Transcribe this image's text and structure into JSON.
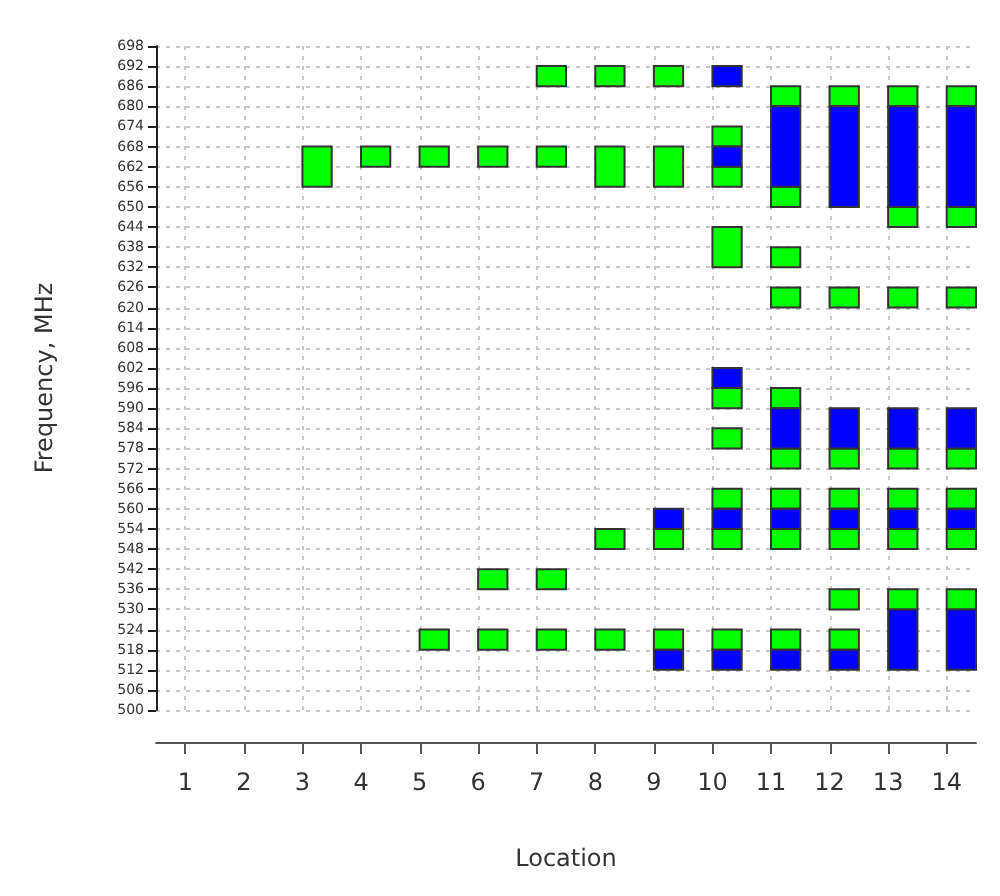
{
  "chart_data": {
    "type": "bar",
    "xlabel": "Location",
    "ylabel": "Frequency, MHz",
    "xlim": [
      0.5,
      14.5
    ],
    "xticks": [
      1,
      2,
      3,
      4,
      5,
      6,
      7,
      8,
      9,
      10,
      11,
      12,
      13,
      14
    ],
    "ylim": [
      500,
      698
    ],
    "yticks": [
      500,
      506,
      512,
      518,
      524,
      530,
      536,
      542,
      548,
      554,
      560,
      566,
      572,
      578,
      584,
      590,
      596,
      602,
      608,
      614,
      620,
      626,
      632,
      638,
      644,
      650,
      656,
      662,
      668,
      674,
      680,
      686,
      692,
      698
    ],
    "grid": true,
    "series": [
      {
        "color": "#00ff00",
        "x": [
          3,
          4,
          5,
          6,
          7,
          8,
          9,
          10,
          11,
          12,
          13,
          14
        ],
        "base": [
          656,
          662,
          518,
          518,
          518,
          518,
          518,
          518,
          518,
          518,
          530,
          530
        ],
        "values": [
          12,
          6,
          6,
          6,
          6,
          6,
          6,
          6,
          6,
          6,
          6,
          6
        ]
      },
      {
        "color": "#00ff00",
        "x": [
          5,
          6,
          7,
          8,
          9,
          10,
          11,
          12,
          13,
          14
        ],
        "base": [
          662,
          536,
          536,
          548,
          548,
          548,
          548,
          530,
          548,
          548
        ],
        "values": [
          6,
          6,
          6,
          6,
          6,
          6,
          6,
          6,
          6,
          6
        ]
      },
      {
        "color": "#00ff00",
        "x": [
          6,
          7,
          8,
          9,
          10,
          11,
          12,
          13,
          14
        ],
        "base": [
          662,
          662,
          656,
          656,
          560,
          560,
          548,
          560,
          560
        ],
        "values": [
          6,
          6,
          12,
          12,
          6,
          6,
          6,
          6,
          6
        ]
      },
      {
        "color": "#00ff00",
        "x": [
          7,
          8,
          9,
          10,
          11,
          12,
          13,
          14
        ],
        "base": [
          686,
          686,
          686,
          578,
          572,
          560,
          572,
          572
        ],
        "values": [
          6,
          6,
          6,
          6,
          6,
          6,
          6,
          6
        ]
      },
      {
        "color": "#00ff00",
        "x": [
          10,
          11,
          12,
          13,
          14
        ],
        "base": [
          590,
          590,
          572,
          620,
          620
        ],
        "values": [
          6,
          6,
          6,
          6,
          6
        ]
      },
      {
        "color": "#00ff00",
        "x": [
          10,
          11,
          12,
          13,
          14
        ],
        "base": [
          632,
          620,
          620,
          644,
          644
        ],
        "values": [
          12,
          6,
          6,
          6,
          6
        ]
      },
      {
        "color": "#00ff00",
        "x": [
          10,
          11,
          12,
          13,
          14
        ],
        "base": [
          656,
          632,
          680,
          680,
          680
        ],
        "values": [
          6,
          6,
          6,
          6,
          6
        ]
      },
      {
        "color": "#00ff00",
        "x": [
          10,
          11
        ],
        "base": [
          668,
          650
        ],
        "values": [
          6,
          6
        ]
      },
      {
        "color": "#00ff00",
        "x": [
          11
        ],
        "base": [
          680
        ],
        "values": [
          6
        ]
      },
      {
        "color": "#0000ff",
        "x": [
          9,
          10,
          11,
          12,
          13,
          14
        ],
        "base": [
          512,
          512,
          512,
          512,
          512,
          512
        ],
        "values": [
          6,
          6,
          6,
          6,
          18,
          18
        ]
      },
      {
        "color": "#0000ff",
        "x": [
          9,
          10,
          11,
          12,
          13,
          14
        ],
        "base": [
          554,
          554,
          554,
          554,
          554,
          554
        ],
        "values": [
          6,
          6,
          6,
          6,
          6,
          6
        ]
      },
      {
        "color": "#0000ff",
        "x": [
          10,
          11,
          12,
          13,
          14
        ],
        "base": [
          596,
          578,
          578,
          578,
          578
        ],
        "values": [
          6,
          12,
          12,
          12,
          12
        ]
      },
      {
        "color": "#0000ff",
        "x": [
          10,
          11,
          12,
          13,
          14
        ],
        "base": [
          662,
          656,
          650,
          650,
          650
        ],
        "values": [
          6,
          24,
          30,
          30,
          30
        ]
      },
      {
        "color": "#0000ff",
        "x": [
          10
        ],
        "base": [
          686
        ],
        "values": [
          6
        ]
      }
    ]
  }
}
